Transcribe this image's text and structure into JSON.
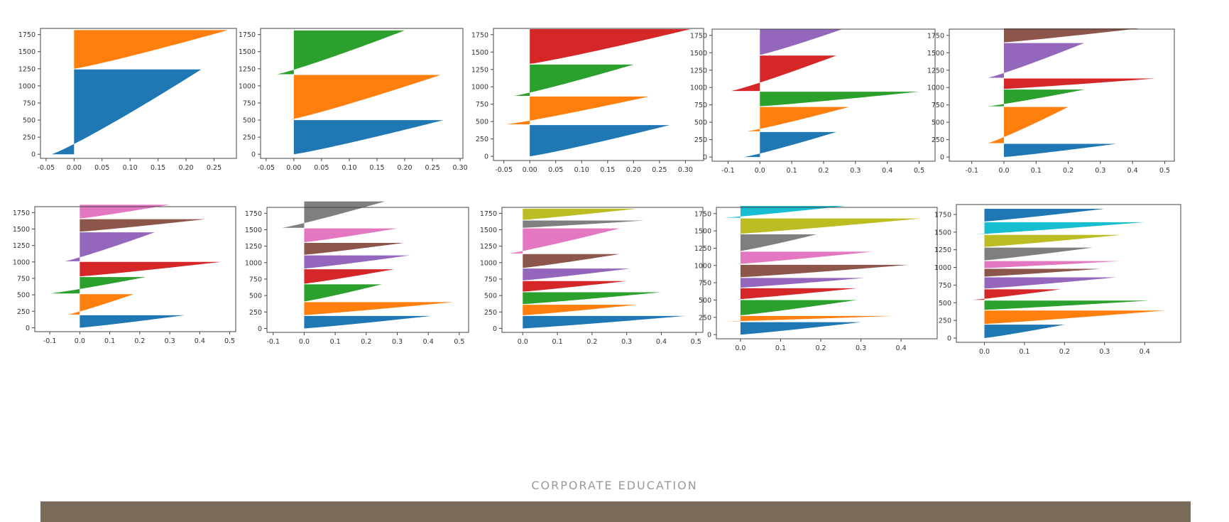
{
  "footer": {
    "label": "CORPORATE EDUCATION"
  },
  "colors": [
    "#1f77b4",
    "#ff7f0e",
    "#2ca02c",
    "#d62728",
    "#9467bd",
    "#8c564b",
    "#e377c2",
    "#7f7f7f",
    "#bcbd22",
    "#17becf"
  ],
  "chart_data": [
    {
      "type": "bar",
      "k": 2,
      "xlim": [
        -0.06,
        0.29
      ],
      "ylim": [
        -60,
        1840
      ],
      "xticks": [
        -0.05,
        0.0,
        0.05,
        0.1,
        0.15,
        0.2,
        0.25
      ],
      "xtick_labels": [
        "-0.05",
        "0.00",
        "0.05",
        "0.10",
        "0.15",
        "0.20",
        "0.25"
      ],
      "yticks": [
        0,
        250,
        500,
        750,
        1000,
        1250,
        1500,
        1750
      ],
      "yticks_label_labels": [
        "0",
        "250",
        "500",
        "750",
        "1000",
        "1250",
        "1500",
        "1750"
      ],
      "clusters": [
        {
          "size": 1240,
          "max": 0.227,
          "min": -0.04
        },
        {
          "size": 565,
          "max": 0.275,
          "min": 0.0
        }
      ]
    },
    {
      "type": "bar",
      "k": 3,
      "xlim": [
        -0.06,
        0.305
      ],
      "ylim": [
        -60,
        1840
      ],
      "xticks": [
        -0.05,
        0.0,
        0.05,
        0.1,
        0.15,
        0.2,
        0.25,
        0.3
      ],
      "xtick_labels": [
        "-0.05",
        "0.00",
        "0.05",
        "0.10",
        "0.15",
        "0.20",
        "0.25",
        "0.30"
      ],
      "yticks": [
        0,
        250,
        500,
        750,
        1000,
        1250,
        1500,
        1750
      ],
      "yticks_label_labels": [
        "0",
        "250",
        "500",
        "750",
        "1000",
        "1250",
        "1500",
        "1750"
      ],
      "clusters": [
        {
          "size": 500,
          "max": 0.27,
          "min": 0.0
        },
        {
          "size": 650,
          "max": 0.265,
          "min": -0.005
        },
        {
          "size": 640,
          "max": 0.2,
          "min": -0.03
        }
      ]
    },
    {
      "type": "bar",
      "k": 4,
      "xlim": [
        -0.07,
        0.335
      ],
      "ylim": [
        -60,
        1840
      ],
      "xticks": [
        -0.05,
        0.0,
        0.05,
        0.1,
        0.15,
        0.2,
        0.25,
        0.3
      ],
      "xtick_labels": [
        "-0.05",
        "0.00",
        "0.05",
        "0.10",
        "0.15",
        "0.20",
        "0.25",
        "0.30"
      ],
      "yticks": [
        0,
        250,
        500,
        750,
        1000,
        1250,
        1500,
        1750
      ],
      "yticks_label_labels": [
        "0",
        "250",
        "500",
        "750",
        "1000",
        "1250",
        "1500",
        "1750"
      ],
      "clusters": [
        {
          "size": 450,
          "max": 0.27,
          "min": 0.0
        },
        {
          "size": 400,
          "max": 0.23,
          "min": -0.045
        },
        {
          "size": 450,
          "max": 0.2,
          "min": -0.03
        },
        {
          "size": 500,
          "max": 0.31,
          "min": 0.0
        }
      ]
    },
    {
      "type": "bar",
      "k": 5,
      "xlim": [
        -0.15,
        0.55
      ],
      "ylim": [
        -60,
        1840
      ],
      "xticks": [
        -0.1,
        0.0,
        0.1,
        0.2,
        0.3,
        0.4,
        0.5
      ],
      "xtick_labels": [
        "-0.1",
        "0.0",
        "0.1",
        "0.2",
        "0.3",
        "0.4",
        "0.5"
      ],
      "yticks": [
        0,
        250,
        500,
        750,
        1000,
        1250,
        1500,
        1750
      ],
      "yticks_label_labels": [
        "0",
        "250",
        "500",
        "750",
        "1000",
        "1250",
        "1500",
        "1750"
      ],
      "clusters": [
        {
          "size": 360,
          "max": 0.24,
          "min": -0.05
        },
        {
          "size": 350,
          "max": 0.28,
          "min": -0.04
        },
        {
          "size": 210,
          "max": 0.5,
          "min": 0.0
        },
        {
          "size": 510,
          "max": 0.24,
          "min": -0.09
        },
        {
          "size": 370,
          "max": 0.26,
          "min": 0.0
        }
      ]
    },
    {
      "type": "bar",
      "k": 6,
      "xlim": [
        -0.17,
        0.53
      ],
      "ylim": [
        -60,
        1840
      ],
      "xticks": [
        -0.1,
        0.0,
        0.1,
        0.2,
        0.3,
        0.4,
        0.5
      ],
      "xtick_labels": [
        "-0.1",
        "0.0",
        "0.1",
        "0.2",
        "0.3",
        "0.4",
        "0.5"
      ],
      "yticks": [
        0,
        250,
        500,
        750,
        1000,
        1250,
        1500,
        1750
      ],
      "yticks_label_labels": [
        "0",
        "250",
        "500",
        "750",
        "1000",
        "1250",
        "1500",
        "1750"
      ],
      "clusters": [
        {
          "size": 190,
          "max": 0.35,
          "min": 0.0
        },
        {
          "size": 520,
          "max": 0.2,
          "min": -0.05
        },
        {
          "size": 240,
          "max": 0.25,
          "min": -0.05
        },
        {
          "size": 150,
          "max": 0.47,
          "min": 0.0
        },
        {
          "size": 500,
          "max": 0.25,
          "min": -0.05
        },
        {
          "size": 200,
          "max": 0.42,
          "min": 0.0
        }
      ]
    },
    {
      "type": "bar",
      "k": 7,
      "xlim": [
        -0.15,
        0.52
      ],
      "ylim": [
        -60,
        1840
      ],
      "xticks": [
        -0.1,
        0.0,
        0.1,
        0.2,
        0.3,
        0.4,
        0.5
      ],
      "xtick_labels": [
        "-0.1",
        "0.0",
        "0.1",
        "0.2",
        "0.3",
        "0.4",
        "0.5"
      ],
      "yticks": [
        0,
        250,
        500,
        750,
        1000,
        1250,
        1500,
        1750
      ],
      "yticks_label_labels": [
        "0",
        "250",
        "500",
        "750",
        "1000",
        "1250",
        "1500",
        "1750"
      ],
      "clusters": [
        {
          "size": 190,
          "max": 0.35,
          "min": 0.0
        },
        {
          "size": 310,
          "max": 0.18,
          "min": -0.04
        },
        {
          "size": 250,
          "max": 0.22,
          "min": -0.1
        },
        {
          "size": 220,
          "max": 0.47,
          "min": 0.0
        },
        {
          "size": 440,
          "max": 0.25,
          "min": -0.05
        },
        {
          "size": 190,
          "max": 0.42,
          "min": 0.0
        },
        {
          "size": 210,
          "max": 0.3,
          "min": 0.0
        }
      ]
    },
    {
      "type": "bar",
      "k": 8,
      "xlim": [
        -0.12,
        0.53
      ],
      "ylim": [
        -60,
        1840
      ],
      "xticks": [
        -0.1,
        0.0,
        0.1,
        0.2,
        0.3,
        0.4,
        0.5
      ],
      "xtick_labels": [
        "-0.1",
        "0.0",
        "0.1",
        "0.2",
        "0.3",
        "0.4",
        "0.5"
      ],
      "yticks": [
        0,
        250,
        500,
        750,
        1000,
        1250,
        1500,
        1750
      ],
      "yticks_label_labels": [
        "0",
        "250",
        "500",
        "750",
        "1000",
        "1250",
        "1500",
        "1750"
      ],
      "clusters": [
        {
          "size": 190,
          "max": 0.41,
          "min": 0.0
        },
        {
          "size": 200,
          "max": 0.48,
          "min": -0.01
        },
        {
          "size": 260,
          "max": 0.25,
          "min": 0.0
        },
        {
          "size": 220,
          "max": 0.29,
          "min": 0.0
        },
        {
          "size": 200,
          "max": 0.34,
          "min": 0.0
        },
        {
          "size": 180,
          "max": 0.32,
          "min": 0.0
        },
        {
          "size": 210,
          "max": 0.3,
          "min": 0.0
        },
        {
          "size": 400,
          "max": 0.26,
          "min": -0.07
        }
      ]
    },
    {
      "type": "bar",
      "k": 9,
      "xlim": [
        -0.06,
        0.52
      ],
      "ylim": [
        -60,
        1840
      ],
      "xticks": [
        0.0,
        0.1,
        0.2,
        0.3,
        0.4,
        0.5
      ],
      "xtick_labels": [
        "0.0",
        "0.1",
        "0.2",
        "0.3",
        "0.4",
        "0.5"
      ],
      "yticks": [
        0,
        250,
        500,
        750,
        1000,
        1250,
        1500,
        1750
      ],
      "yticks_label_labels": [
        "0",
        "250",
        "500",
        "750",
        "1000",
        "1250",
        "1500",
        "1750"
      ],
      "clusters": [
        {
          "size": 190,
          "max": 0.47,
          "min": 0.0
        },
        {
          "size": 160,
          "max": 0.33,
          "min": 0.0
        },
        {
          "size": 180,
          "max": 0.4,
          "min": 0.0
        },
        {
          "size": 160,
          "max": 0.3,
          "min": 0.0
        },
        {
          "size": 180,
          "max": 0.31,
          "min": 0.0
        },
        {
          "size": 210,
          "max": 0.28,
          "min": 0.0
        },
        {
          "size": 380,
          "max": 0.28,
          "min": -0.04
        },
        {
          "size": 110,
          "max": 0.35,
          "min": 0.0
        },
        {
          "size": 170,
          "max": 0.33,
          "min": 0.0
        }
      ]
    },
    {
      "type": "bar",
      "k": 10,
      "xlim": [
        -0.06,
        0.49
      ],
      "ylim": [
        -60,
        1840
      ],
      "xticks": [
        0.0,
        0.1,
        0.2,
        0.3,
        0.4
      ],
      "xtick_labels": [
        "0.0",
        "0.1",
        "0.2",
        "0.3",
        "0.4"
      ],
      "yticks": [
        0,
        250,
        500,
        750,
        1000,
        1250,
        1500,
        1750
      ],
      "yticks_label_labels": [
        "0",
        "250",
        "500",
        "750",
        "1000",
        "1250",
        "1500",
        "1750"
      ],
      "clusters": [
        {
          "size": 180,
          "max": 0.3,
          "min": 0.0
        },
        {
          "size": 80,
          "max": 0.38,
          "min": -0.04
        },
        {
          "size": 220,
          "max": 0.29,
          "min": 0.0
        },
        {
          "size": 160,
          "max": 0.29,
          "min": -0.01
        },
        {
          "size": 140,
          "max": 0.31,
          "min": 0.0
        },
        {
          "size": 180,
          "max": 0.42,
          "min": 0.0
        },
        {
          "size": 180,
          "max": 0.33,
          "min": -0.01
        },
        {
          "size": 240,
          "max": 0.19,
          "min": 0.0
        },
        {
          "size": 220,
          "max": 0.45,
          "min": 0.0
        },
        {
          "size": 170,
          "max": 0.26,
          "min": -0.04
        }
      ]
    },
    {
      "type": "bar",
      "k": 11,
      "xlim": [
        -0.07,
        0.49
      ],
      "ylim": [
        -60,
        1890
      ],
      "xticks": [
        0.0,
        0.1,
        0.2,
        0.3,
        0.4
      ],
      "xtick_labels": [
        "0.0",
        "0.1",
        "0.2",
        "0.3",
        "0.4"
      ],
      "yticks": [
        0,
        250,
        500,
        750,
        1000,
        1250,
        1500,
        1750
      ],
      "yticks_label_labels": [
        "0",
        "250",
        "500",
        "750",
        "1000",
        "1250",
        "1500",
        "1750"
      ],
      "clusters": [
        {
          "size": 190,
          "max": 0.2,
          "min": 0.0
        },
        {
          "size": 190,
          "max": 0.45,
          "min": 0.0
        },
        {
          "size": 130,
          "max": 0.41,
          "min": 0.0
        },
        {
          "size": 150,
          "max": 0.19,
          "min": -0.03
        },
        {
          "size": 160,
          "max": 0.33,
          "min": 0.0
        },
        {
          "size": 110,
          "max": 0.29,
          "min": 0.0
        },
        {
          "size": 100,
          "max": 0.34,
          "min": 0.0
        },
        {
          "size": 180,
          "max": 0.27,
          "min": 0.0
        },
        {
          "size": 170,
          "max": 0.34,
          "min": 0.0
        },
        {
          "size": 170,
          "max": 0.4,
          "min": -0.02
        },
        {
          "size": 180,
          "max": 0.3,
          "min": 0.0
        }
      ]
    }
  ]
}
